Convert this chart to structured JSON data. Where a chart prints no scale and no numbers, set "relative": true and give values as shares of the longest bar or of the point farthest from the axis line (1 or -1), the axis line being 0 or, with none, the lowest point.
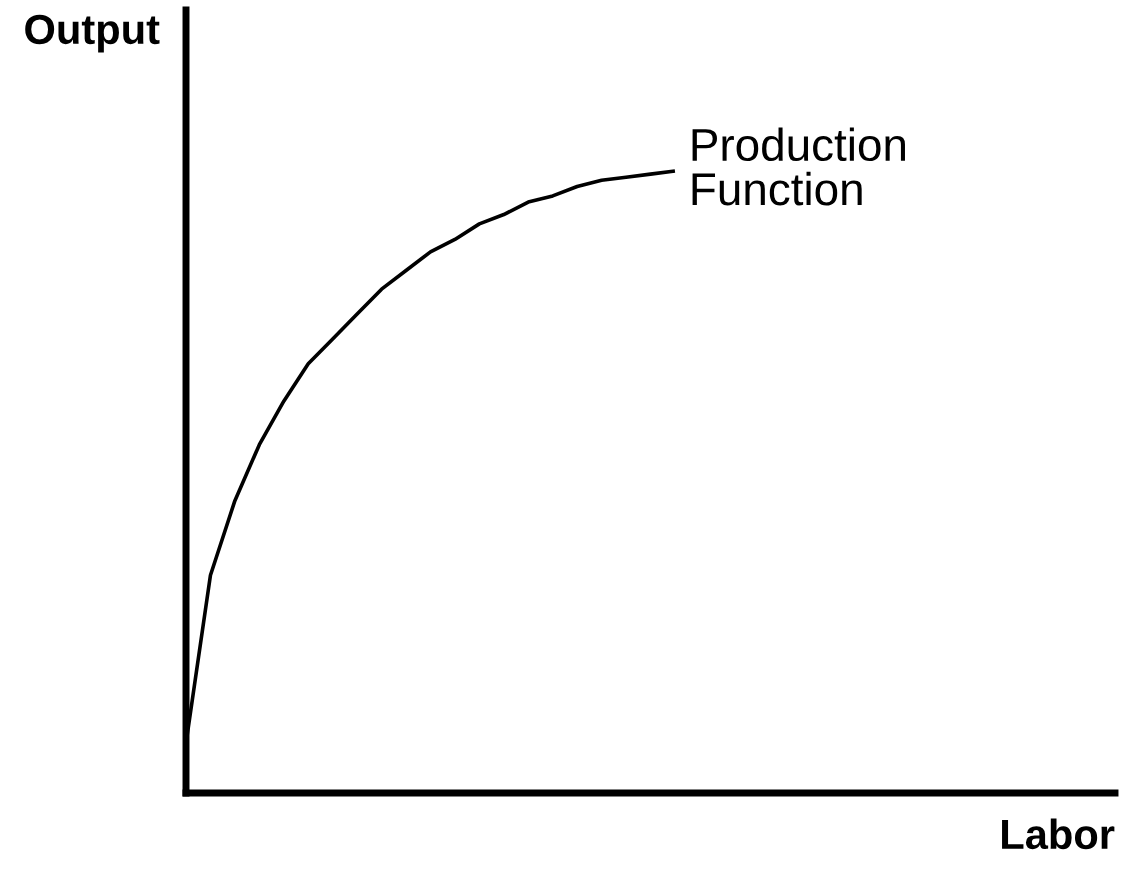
{
  "chart_data": {
    "type": "line",
    "relative": true,
    "xlabel": "Labor",
    "ylabel": "Output",
    "legend": false,
    "marker": "none",
    "line_style": "solid",
    "categories": [
      null,
      null,
      null,
      null,
      null,
      null,
      null,
      null,
      null,
      null,
      null,
      null,
      null,
      null,
      null,
      null,
      null,
      null,
      null,
      null,
      null,
      null,
      null,
      null,
      null,
      null,
      null,
      null,
      null,
      null,
      null,
      null,
      null,
      null,
      null,
      null,
      null,
      null,
      null
    ],
    "series": [
      {
        "name": "Production\nFunction",
        "color": "#000000",
        "values": [
          0.08,
          0.35,
          0.47,
          0.56,
          0.63,
          0.69,
          0.73,
          0.77,
          0.81,
          0.84,
          0.87,
          0.89,
          0.915,
          0.93,
          0.95,
          0.96,
          0.975,
          0.985,
          0.99,
          0.995,
          1.0,
          null,
          null,
          null,
          null,
          null,
          null,
          null,
          null,
          null,
          null,
          null,
          null,
          null,
          null,
          null,
          null,
          null,
          null
        ]
      }
    ]
  }
}
